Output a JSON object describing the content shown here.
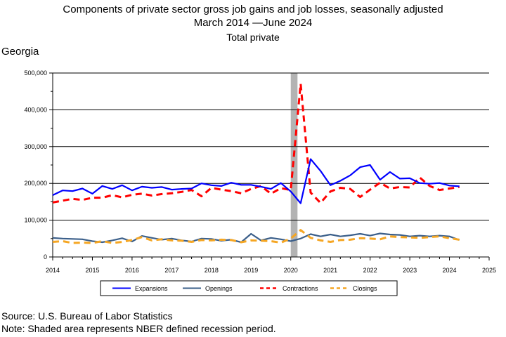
{
  "header": {
    "title": "Components of private sector gross job gains and job losses, seasonally adjusted",
    "subtitle": "March 2014 —June 2024",
    "series_scope": "Total private",
    "region": "Georgia"
  },
  "footer": {
    "source": "Source: U.S. Bureau of Labor Statistics",
    "note": "Note: Shaded area represents NBER defined recession period."
  },
  "chart_data": {
    "type": "line",
    "title": "Components of private sector gross job gains and job losses, seasonally adjusted",
    "xlabel": "",
    "ylabel": "",
    "xlim": [
      2014,
      2025
    ],
    "ylim": [
      0,
      500000
    ],
    "x_ticks": [
      2014,
      2015,
      2016,
      2017,
      2018,
      2019,
      2020,
      2021,
      2022,
      2023,
      2024,
      2025
    ],
    "y_ticks": [
      0,
      100000,
      200000,
      300000,
      400000,
      500000
    ],
    "y_tick_labels": [
      "0",
      "100,000",
      "200,000",
      "300,000",
      "400,000",
      "500,000"
    ],
    "grid": "horizontal",
    "legend_position": "bottom",
    "recession_band": [
      2020.0,
      2020.17
    ],
    "x": [
      2014.0,
      2014.25,
      2014.5,
      2014.75,
      2015.0,
      2015.25,
      2015.5,
      2015.75,
      2016.0,
      2016.25,
      2016.5,
      2016.75,
      2017.0,
      2017.25,
      2017.5,
      2017.75,
      2018.0,
      2018.25,
      2018.5,
      2018.75,
      2019.0,
      2019.25,
      2019.5,
      2019.75,
      2020.0,
      2020.25,
      2020.5,
      2020.75,
      2021.0,
      2021.25,
      2021.5,
      2021.75,
      2022.0,
      2022.25,
      2022.5,
      2022.75,
      2023.0,
      2023.25,
      2023.5,
      2023.75,
      2024.0,
      2024.25
    ],
    "series": [
      {
        "name": "Expansions",
        "color": "#0000ff",
        "dash": "solid",
        "values": [
          168000,
          181000,
          179000,
          186000,
          172000,
          193000,
          185000,
          195000,
          181000,
          191000,
          188000,
          190000,
          183000,
          185000,
          186000,
          200000,
          195000,
          193000,
          202000,
          196000,
          196000,
          191000,
          185000,
          201000,
          178000,
          146000,
          266000,
          234000,
          195000,
          207000,
          222000,
          244000,
          250000,
          210000,
          231000,
          213000,
          214000,
          201000,
          199000,
          201000,
          194000,
          192000
        ]
      },
      {
        "name": "Openings",
        "color": "#3b5f8a",
        "dash": "solid",
        "values": [
          52000,
          50000,
          49000,
          48000,
          43000,
          40000,
          45000,
          51000,
          42000,
          57000,
          52000,
          47000,
          50000,
          45000,
          42000,
          50000,
          49000,
          44000,
          47000,
          40000,
          63000,
          45000,
          52000,
          48000,
          43000,
          50000,
          62000,
          56000,
          61000,
          56000,
          59000,
          63000,
          58000,
          64000,
          61000,
          60000,
          56000,
          58000,
          56000,
          58000,
          56000,
          46000
        ]
      },
      {
        "name": "Contractions",
        "color": "#ff0000",
        "dash": "dashed",
        "values": [
          148000,
          153000,
          158000,
          155000,
          161000,
          161000,
          168000,
          162000,
          169000,
          172000,
          167000,
          171000,
          173000,
          177000,
          182000,
          165000,
          188000,
          183000,
          179000,
          173000,
          185000,
          193000,
          172000,
          187000,
          182000,
          471000,
          175000,
          147000,
          178000,
          188000,
          185000,
          163000,
          183000,
          202000,
          186000,
          190000,
          189000,
          216000,
          193000,
          182000,
          186000,
          190000
        ]
      },
      {
        "name": "Closings",
        "color": "#f5a623",
        "dash": "dashed",
        "values": [
          41000,
          43000,
          38000,
          39000,
          38000,
          43000,
          38000,
          41000,
          46000,
          54000,
          45000,
          48000,
          45000,
          44000,
          41000,
          46000,
          45000,
          47000,
          46000,
          40000,
          45000,
          44000,
          43000,
          39000,
          50000,
          73000,
          52000,
          45000,
          41000,
          46000,
          47000,
          51000,
          50000,
          48000,
          56000,
          54000,
          53000,
          52000,
          54000,
          56000,
          51000,
          47000
        ]
      }
    ]
  }
}
